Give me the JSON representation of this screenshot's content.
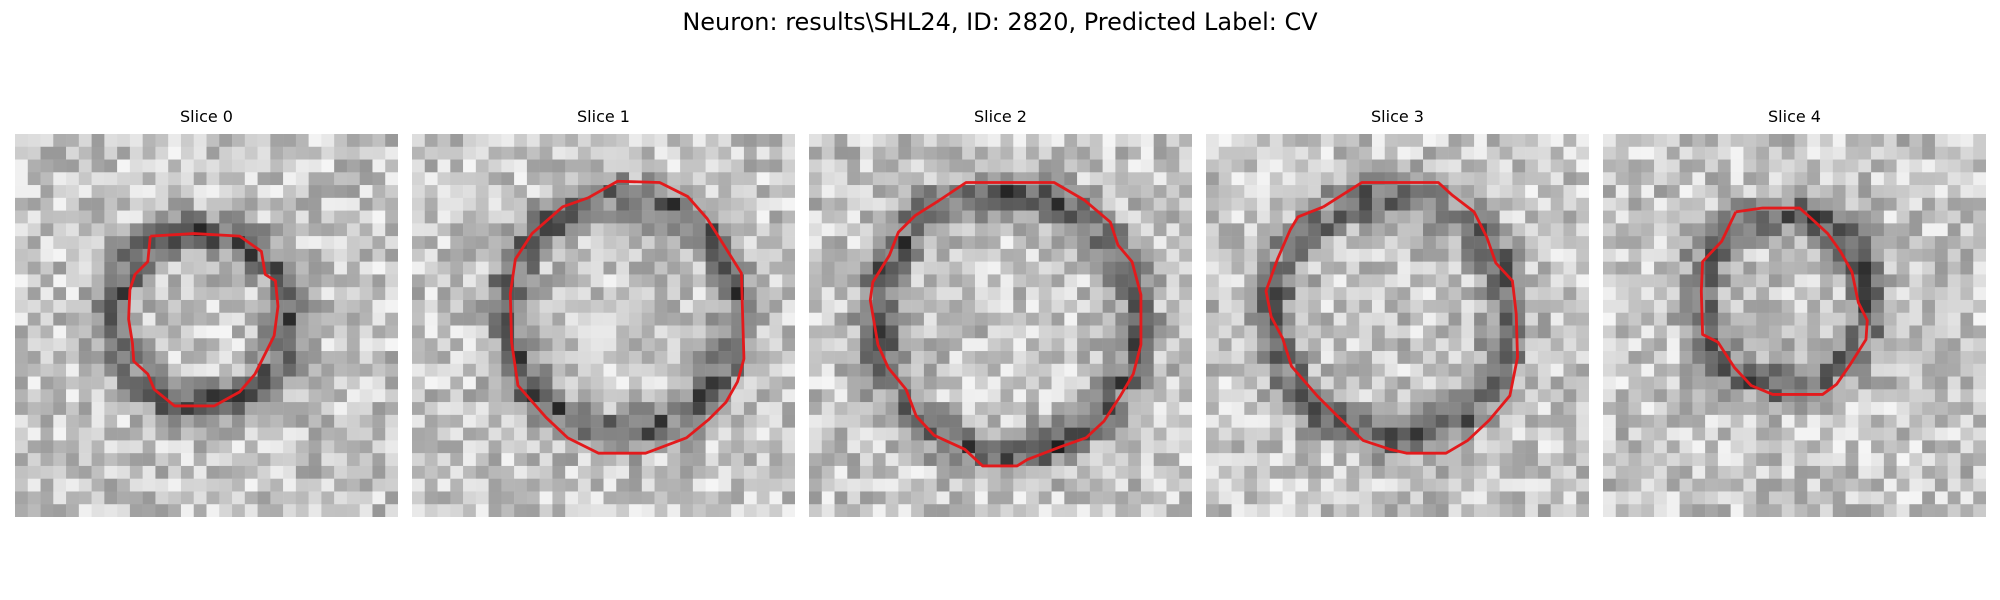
{
  "figure": {
    "title": "Neuron: results\\SHL24, ID: 2820, Predicted Label: CV"
  },
  "panels": [
    {
      "title": "Slice 0"
    },
    {
      "title": "Slice 1"
    },
    {
      "title": "Slice 2"
    },
    {
      "title": "Slice 3"
    },
    {
      "title": "Slice 4"
    }
  ],
  "colors": {
    "contour": "#e31a1c",
    "background": "#ffffff"
  }
}
